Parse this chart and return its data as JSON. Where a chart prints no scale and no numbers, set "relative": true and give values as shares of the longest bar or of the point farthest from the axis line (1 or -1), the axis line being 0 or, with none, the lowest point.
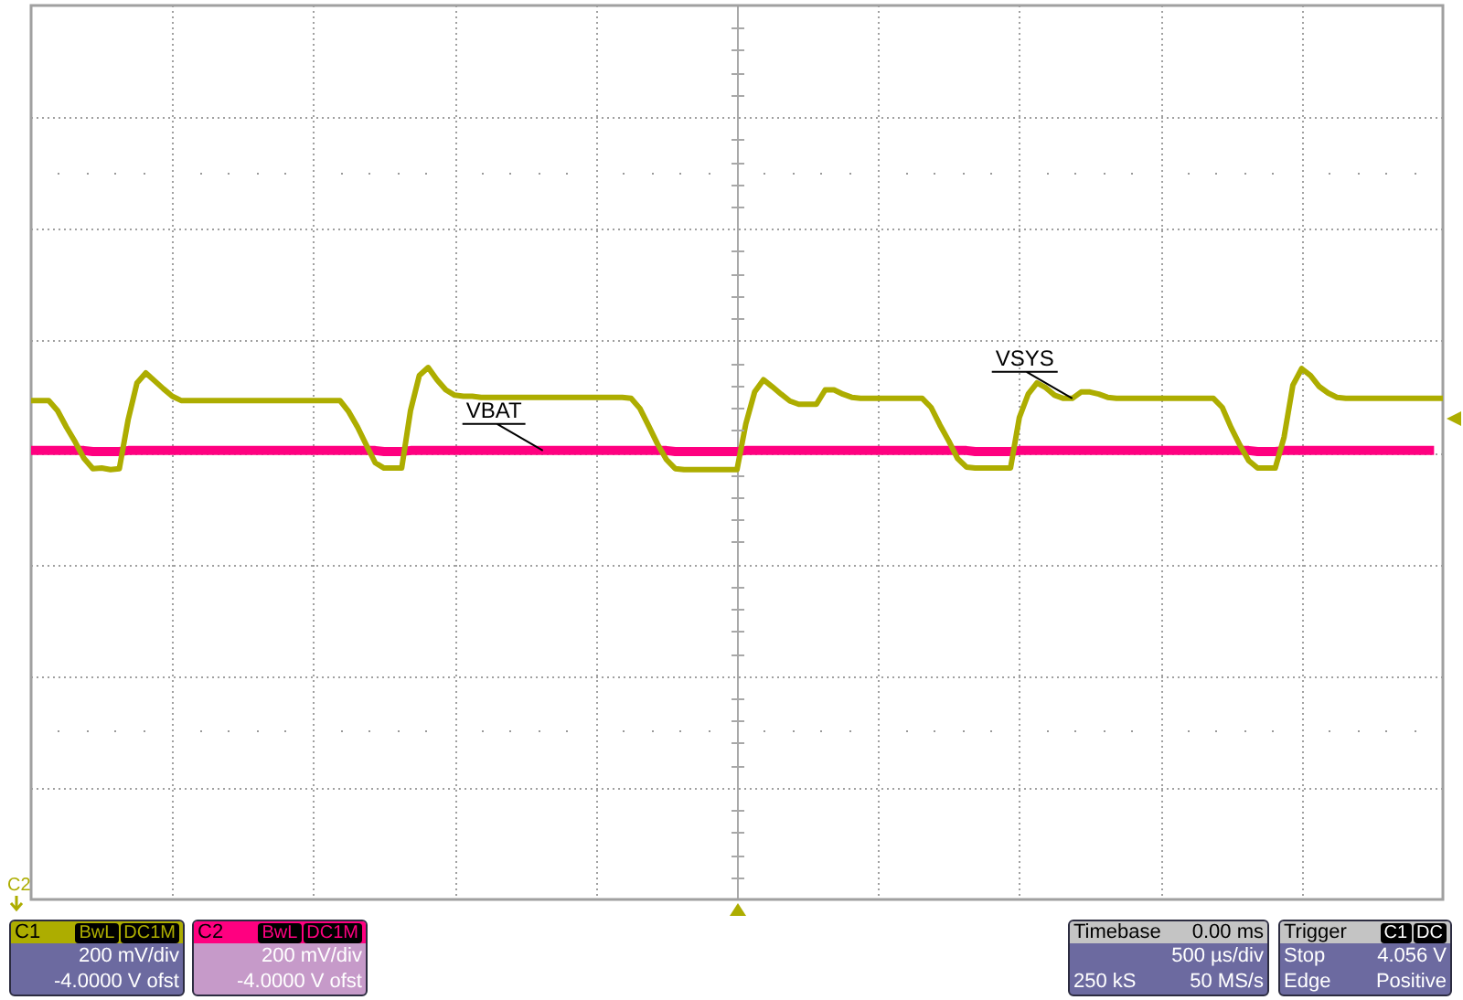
{
  "chart_data": {
    "type": "line",
    "relative": true,
    "grid": true,
    "categories": [
      null,
      null,
      null,
      null,
      null,
      null,
      null,
      null,
      null,
      null,
      null,
      null,
      null,
      null,
      null,
      null,
      null,
      null,
      null,
      null,
      null,
      null,
      null,
      null,
      null,
      null,
      null,
      null,
      null,
      null,
      null,
      null,
      null,
      null,
      null,
      null,
      null,
      null,
      null,
      null,
      null,
      null,
      null,
      null,
      null,
      null,
      null,
      null,
      null,
      null,
      null,
      null,
      null,
      null,
      null,
      null,
      null,
      null,
      null,
      null,
      null,
      null,
      null,
      null,
      null,
      null,
      null,
      null,
      null,
      null,
      null,
      null,
      null,
      null,
      null,
      null,
      null,
      null,
      null,
      null,
      null,
      null,
      null,
      null,
      null,
      null,
      null,
      null,
      null,
      null,
      null,
      null,
      null,
      null,
      null,
      null,
      null,
      null,
      null,
      null,
      null,
      null,
      null,
      null,
      null,
      null,
      null,
      null,
      null,
      null,
      null,
      null,
      null,
      null,
      null,
      null,
      null,
      null,
      null,
      null,
      null,
      null,
      null,
      null,
      null,
      null,
      null,
      null,
      null,
      null,
      null,
      null,
      null,
      null,
      null,
      null,
      null,
      null,
      null,
      null,
      null,
      null,
      null,
      null,
      null,
      null,
      null,
      null,
      null,
      null,
      null,
      null,
      null,
      null,
      null,
      null,
      null,
      null,
      null,
      null,
      null
    ],
    "series": [
      {
        "name": "VSYS",
        "color": "#adad00",
        "values": [
          0.938,
          0.938,
          0.938,
          0.919,
          0.888,
          0.86,
          0.829,
          0.81,
          0.811,
          0.808,
          0.81,
          0.902,
          0.971,
          0.99,
          0.975,
          0.96,
          0.946,
          0.938,
          0.938,
          0.938,
          0.938,
          0.938,
          0.938,
          0.938,
          0.938,
          0.938,
          0.938,
          0.938,
          0.938,
          0.938,
          0.938,
          0.938,
          0.938,
          0.938,
          0.938,
          0.938,
          0.917,
          0.888,
          0.854,
          0.821,
          0.811,
          0.811,
          0.811,
          0.919,
          0.985,
          1,
          0.977,
          0.958,
          0.948,
          0.946,
          0.946,
          0.944,
          0.944,
          0.944,
          0.944,
          0.944,
          0.944,
          0.944,
          0.944,
          0.944,
          0.944,
          0.944,
          0.944,
          0.944,
          0.944,
          0.944,
          0.944,
          0.944,
          0.942,
          0.923,
          0.89,
          0.856,
          0.827,
          0.81,
          0.808,
          0.808,
          0.808,
          0.808,
          0.808,
          0.808,
          0.808,
          0.894,
          0.954,
          0.977,
          0.964,
          0.95,
          0.937,
          0.931,
          0.931,
          0.931,
          0.958,
          0.958,
          0.95,
          0.944,
          0.942,
          0.942,
          0.942,
          0.942,
          0.942,
          0.942,
          0.942,
          0.942,
          0.925,
          0.892,
          0.862,
          0.829,
          0.813,
          0.811,
          0.811,
          0.811,
          0.811,
          0.811,
          0.906,
          0.95,
          0.971,
          0.962,
          0.948,
          0.942,
          0.942,
          0.954,
          0.954,
          0.95,
          0.944,
          0.942,
          0.942,
          0.942,
          0.942,
          0.942,
          0.942,
          0.942,
          0.942,
          0.942,
          0.942,
          0.942,
          0.942,
          0.925,
          0.887,
          0.854,
          0.825,
          0.811,
          0.811,
          0.811,
          0.869,
          0.967,
          0.998,
          0.985,
          0.964,
          0.952,
          0.944,
          0.942,
          0.942,
          0.942,
          0.942,
          0.942,
          0.942,
          0.942,
          0.942,
          0.942,
          0.942,
          0.942,
          0.942
        ]
      },
      {
        "name": "VBAT",
        "color": "#ff0080",
        "values": [
          0.844,
          0.844,
          0.844,
          0.844,
          0.844,
          0.844,
          0.844,
          0.842,
          0.842,
          0.842,
          0.842,
          0.844,
          0.844,
          0.844,
          0.844,
          0.844,
          0.844,
          0.844,
          0.844,
          0.844,
          0.844,
          0.844,
          0.844,
          0.844,
          0.844,
          0.844,
          0.844,
          0.844,
          0.844,
          0.844,
          0.844,
          0.844,
          0.844,
          0.844,
          0.844,
          0.844,
          0.844,
          0.844,
          0.844,
          0.844,
          0.842,
          0.842,
          0.842,
          0.844,
          0.844,
          0.844,
          0.844,
          0.844,
          0.844,
          0.844,
          0.844,
          0.844,
          0.844,
          0.844,
          0.844,
          0.844,
          0.844,
          0.844,
          0.844,
          0.844,
          0.844,
          0.844,
          0.844,
          0.844,
          0.844,
          0.844,
          0.844,
          0.844,
          0.844,
          0.844,
          0.844,
          0.844,
          0.844,
          0.842,
          0.842,
          0.842,
          0.842,
          0.842,
          0.842,
          0.842,
          0.842,
          0.844,
          0.844,
          0.844,
          0.844,
          0.844,
          0.844,
          0.844,
          0.844,
          0.844,
          0.844,
          0.844,
          0.844,
          0.844,
          0.844,
          0.844,
          0.844,
          0.844,
          0.844,
          0.844,
          0.844,
          0.844,
          0.844,
          0.844,
          0.844,
          0.844,
          0.844,
          0.842,
          0.842,
          0.842,
          0.842,
          0.842,
          0.844,
          0.844,
          0.844,
          0.844,
          0.844,
          0.844,
          0.844,
          0.844,
          0.844,
          0.844,
          0.844,
          0.844,
          0.844,
          0.844,
          0.844,
          0.844,
          0.844,
          0.844,
          0.844,
          0.844,
          0.844,
          0.844,
          0.844,
          0.844,
          0.844,
          0.844,
          0.844,
          0.842,
          0.842,
          0.842,
          0.844,
          0.844,
          0.844,
          0.844,
          0.844,
          0.844,
          0.844,
          0.844,
          0.844,
          0.844,
          0.844,
          0.844,
          0.844,
          0.844,
          0.844,
          0.844,
          0.844,
          0.844,
          null
        ]
      }
    ],
    "annotations": [
      "C1",
      "BwL",
      "DC1M",
      "200 mV/div",
      "-4.0000 V ofst",
      "C2",
      "BwL",
      "DC1M",
      "200 mV/div",
      "-4.0000 V ofst",
      "Timebase",
      "0.00 ms",
      "500 µs/div",
      "250 kS",
      "50 MS/s",
      "Trigger",
      "C1",
      "DC",
      "Stop",
      "4.056 V",
      "Edge",
      "Positive",
      "C2"
    ]
  }
}
